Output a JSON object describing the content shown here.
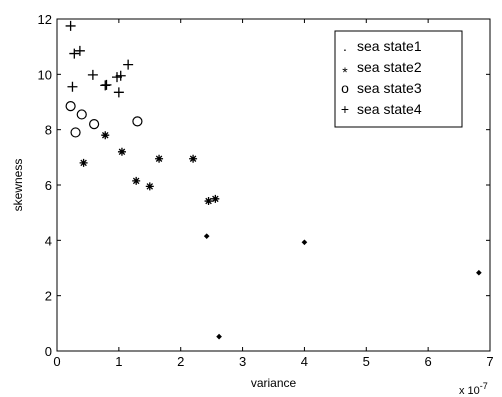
{
  "chart_data": {
    "type": "scatter",
    "title": "",
    "xlabel": "variance",
    "ylabel": "skewness",
    "x_exponent_label": "x 10",
    "x_exponent_power": "-7",
    "xlim": [
      0,
      7
    ],
    "ylim": [
      0,
      12
    ],
    "x_ticks": [
      "0",
      "1",
      "2",
      "3",
      "4",
      "5",
      "6",
      "7"
    ],
    "y_ticks": [
      "0",
      "2",
      "4",
      "6",
      "8",
      "10",
      "12"
    ],
    "grid": false,
    "legend_position": "top-right",
    "series": [
      {
        "name": "sea state1",
        "legend_marker": ".",
        "marker": "dot",
        "points": [
          [
            2.42,
            4.15
          ],
          [
            2.62,
            0.52
          ],
          [
            4.0,
            3.93
          ],
          [
            6.82,
            2.83
          ]
        ]
      },
      {
        "name": "sea state2",
        "legend_marker": "*",
        "marker": "asterisk",
        "points": [
          [
            0.43,
            6.8
          ],
          [
            0.78,
            7.8
          ],
          [
            1.05,
            7.2
          ],
          [
            1.28,
            6.15
          ],
          [
            1.5,
            5.95
          ],
          [
            1.65,
            6.95
          ],
          [
            2.2,
            6.95
          ],
          [
            2.45,
            5.42
          ],
          [
            2.56,
            5.5
          ]
        ]
      },
      {
        "name": "sea state3",
        "legend_marker": "o",
        "marker": "circle",
        "points": [
          [
            0.22,
            8.85
          ],
          [
            0.3,
            7.9
          ],
          [
            0.4,
            8.55
          ],
          [
            0.6,
            8.2
          ],
          [
            1.3,
            8.3
          ]
        ]
      },
      {
        "name": "sea state4",
        "legend_marker": "+",
        "marker": "plus",
        "points": [
          [
            0.22,
            11.75
          ],
          [
            0.25,
            9.55
          ],
          [
            0.28,
            10.75
          ],
          [
            0.37,
            10.85
          ],
          [
            0.58,
            9.98
          ],
          [
            0.78,
            9.6
          ],
          [
            0.8,
            9.62
          ],
          [
            0.97,
            9.9
          ],
          [
            1.03,
            9.95
          ],
          [
            1.0,
            9.35
          ],
          [
            1.15,
            10.35
          ]
        ]
      }
    ]
  }
}
